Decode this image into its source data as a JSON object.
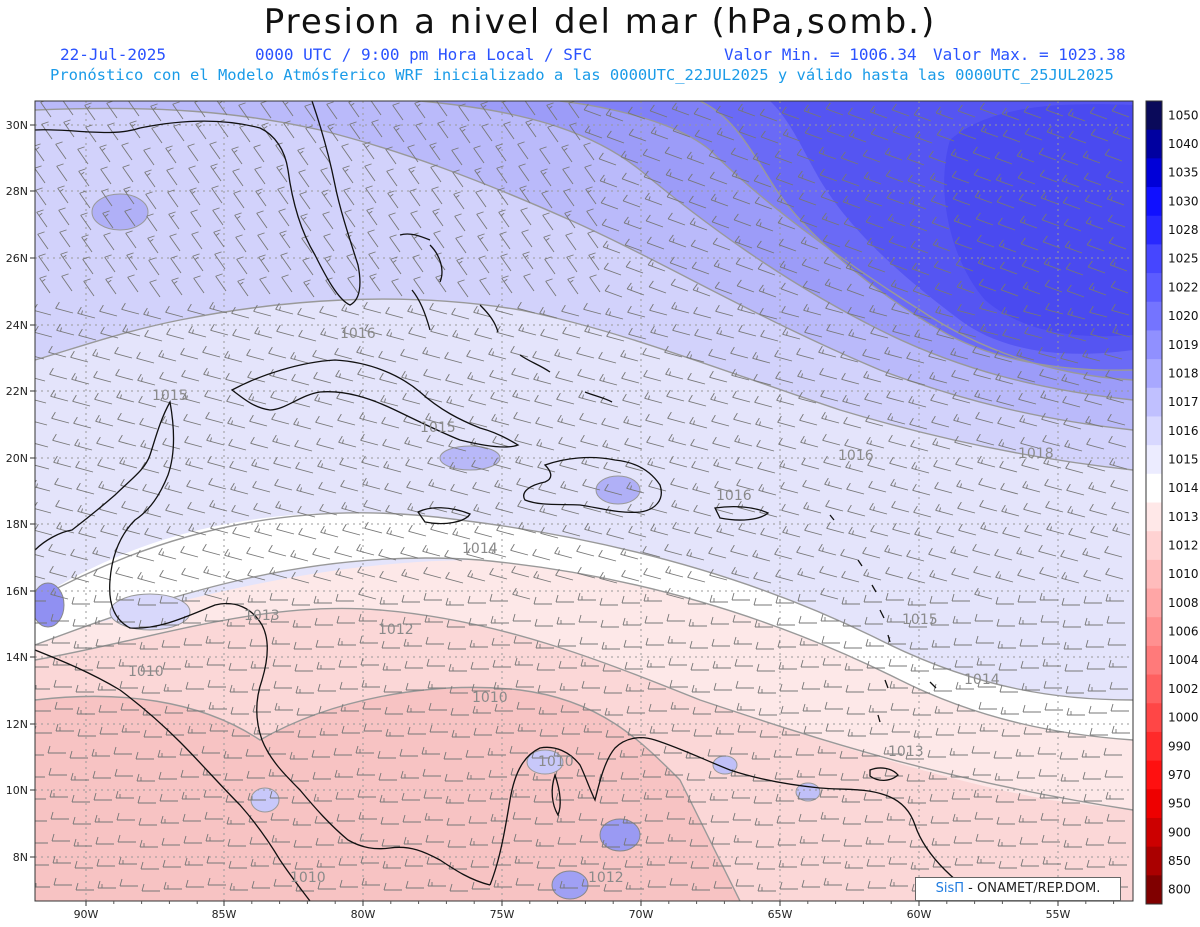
{
  "header": {
    "title": "Presion a nivel del mar (hPa,somb.)",
    "date": "22-Jul-2025",
    "time": "0000 UTC / 9:00 pm Hora Local / SFC",
    "min_label": "Valor Min. = 1006.34",
    "max_label": "Valor Max. = 1023.38",
    "forecast_line": "Pronóstico con el Modelo Atmósferico WRF inicializado a las 0000UTC_22JUL2025 y válido hasta las  0000UTC_25JUL2025"
  },
  "axes": {
    "lon_labels": [
      "90W",
      "85W",
      "80W",
      "75W",
      "70W",
      "65W",
      "60W",
      "55W"
    ],
    "lat_labels": [
      "30N",
      "28N",
      "26N",
      "24N",
      "22N",
      "20N",
      "18N",
      "16N",
      "14N",
      "12N",
      "10N",
      "8N"
    ]
  },
  "colorbar": {
    "levels": [
      "1050",
      "1040",
      "1035",
      "1030",
      "1028",
      "1025",
      "1022",
      "1020",
      "1019",
      "1018",
      "1017",
      "1016",
      "1015",
      "1014",
      "1013",
      "1012",
      "1010",
      "1008",
      "1006",
      "1004",
      "1002",
      "1000",
      "990",
      "970",
      "950",
      "900",
      "850",
      "800"
    ],
    "colors": [
      "#0a0a5a",
      "#0000a0",
      "#0000d8",
      "#1010ff",
      "#2828ff",
      "#4646ff",
      "#5c5cff",
      "#7474ff",
      "#9090ff",
      "#a8a8ff",
      "#c0c0ff",
      "#d8d8ff",
      "#ececff",
      "#ffffff",
      "#ffe8e8",
      "#ffd2d2",
      "#ffbcbc",
      "#ffa6a6",
      "#ff9090",
      "#ff7a7a",
      "#ff6060",
      "#ff4646",
      "#ff2a2a",
      "#ff1010",
      "#ee0000",
      "#cc0000",
      "#aa0000",
      "#800000"
    ]
  },
  "isobar_labels": [
    "1016",
    "1015",
    "1015",
    "1018",
    "1016",
    "1016",
    "1014",
    "1015",
    "1014",
    "1013",
    "1012",
    "1010",
    "1010",
    "1010",
    "1012",
    "1013",
    "1010"
  ],
  "credit": {
    "brand": "SisΠ",
    "text": " - ONAMET/REP.DOM."
  }
}
